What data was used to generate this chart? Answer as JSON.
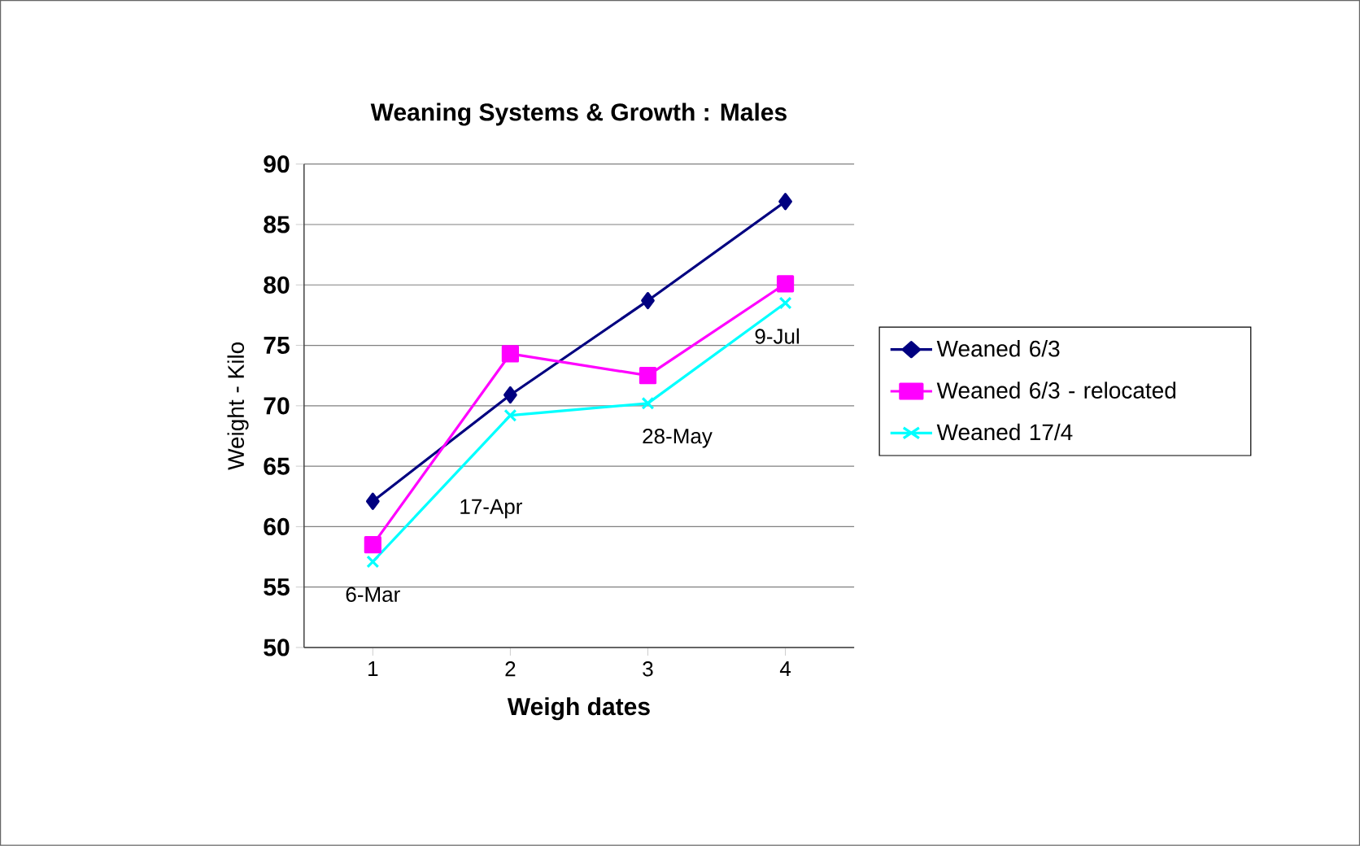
{
  "chart_data": {
    "type": "line",
    "title": "Weaning Systems & Growth : Males",
    "xlabel": "Weigh dates",
    "ylabel": "Weight - Kilo",
    "x": [
      1,
      2,
      3,
      4
    ],
    "xlim": [
      0.5,
      4.5
    ],
    "xticks": [
      1,
      2,
      3,
      4
    ],
    "ylim": [
      50,
      90
    ],
    "yticks": [
      50,
      55,
      60,
      65,
      70,
      75,
      80,
      85,
      90
    ],
    "grid": "y",
    "legend": "right",
    "line_style": "solid",
    "series": [
      {
        "name": "Weaned 6/3",
        "color": "#000080",
        "marker": "diamond",
        "values": [
          62.1,
          70.9,
          78.7,
          86.9
        ]
      },
      {
        "name": "Weaned 6/3 - relocated",
        "color": "#ff00ff",
        "marker": "square",
        "values": [
          58.5,
          74.3,
          72.5,
          80.1
        ]
      },
      {
        "name": "Weaned 17/4",
        "color": "#00ffff",
        "marker": "cross",
        "values": [
          57.1,
          69.2,
          70.2,
          78.5
        ]
      }
    ],
    "annotations": [
      "6-Mar",
      "17-Apr",
      "28-May",
      "9-Jul"
    ]
  }
}
